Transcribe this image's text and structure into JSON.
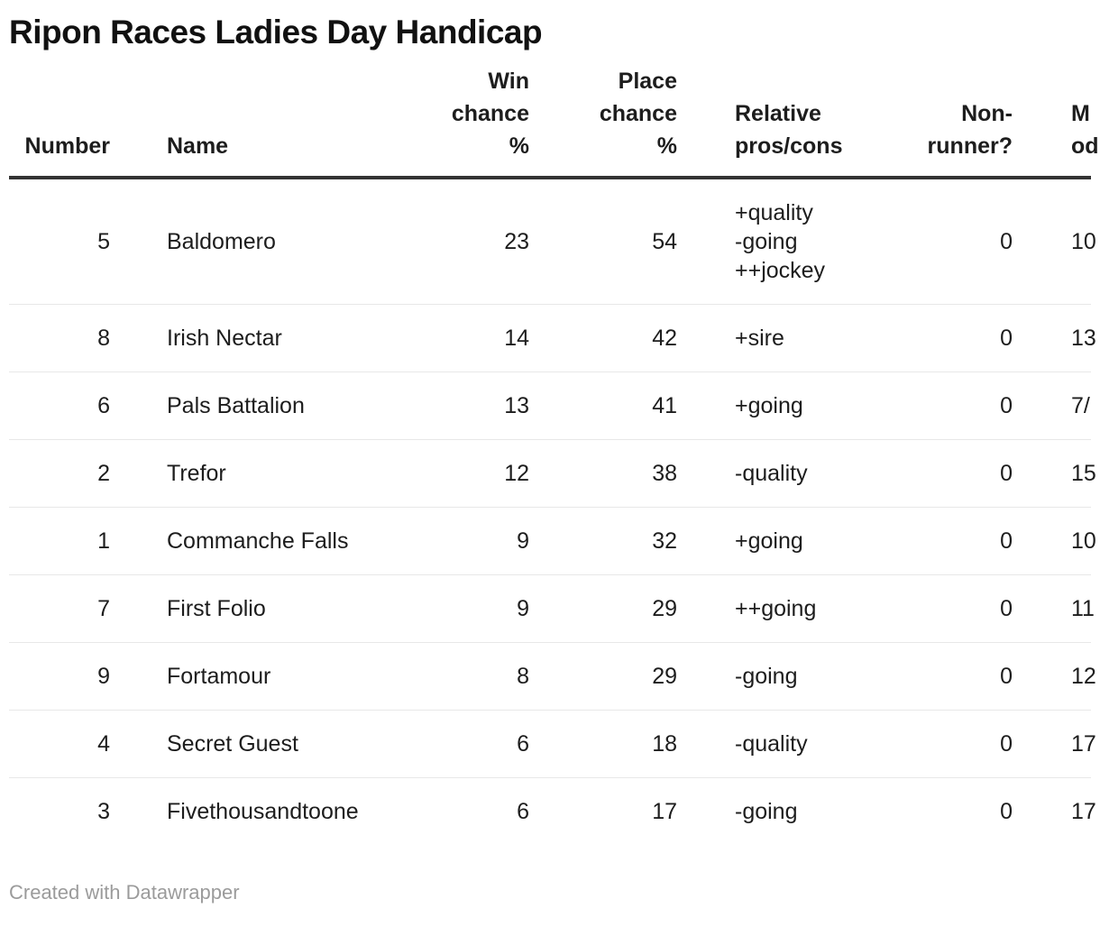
{
  "title": "Ripon Races Ladies Day Handicap",
  "footer": {
    "credit": "Created with Datawrapper"
  },
  "colors": {
    "text": "#1d1d1d",
    "title": "#111111",
    "header_rule": "#333333",
    "row_rule": "#e8e8e8",
    "footer_text": "#9b9b9b",
    "background": "#ffffff"
  },
  "chart_data": {
    "type": "table",
    "title": "Ripon Races Ladies Day Handicap",
    "columns": [
      {
        "key": "number",
        "label": "Number",
        "align": "right"
      },
      {
        "key": "name",
        "label": "Name",
        "align": "left"
      },
      {
        "key": "win",
        "label": "Win\nchance\n%",
        "align": "right"
      },
      {
        "key": "place",
        "label": "Place\nchance\n%",
        "align": "right"
      },
      {
        "key": "pros",
        "label": "Relative\npros/cons",
        "align": "left"
      },
      {
        "key": "nonrunner",
        "label": "Non-\nrunner?",
        "align": "right"
      },
      {
        "key": "odds",
        "label": "M\nod",
        "align": "left"
      }
    ],
    "rows": [
      {
        "number": "5",
        "name": "Baldomero",
        "win": "23",
        "place": "54",
        "pros": "+quality\n-going\n++jockey",
        "nonrunner": "0",
        "odds": "10"
      },
      {
        "number": "8",
        "name": "Irish Nectar",
        "win": "14",
        "place": "42",
        "pros": "+sire",
        "nonrunner": "0",
        "odds": "13"
      },
      {
        "number": "6",
        "name": "Pals Battalion",
        "win": "13",
        "place": "41",
        "pros": "+going",
        "nonrunner": "0",
        "odds": "7/"
      },
      {
        "number": "2",
        "name": "Trefor",
        "win": "12",
        "place": "38",
        "pros": "-quality",
        "nonrunner": "0",
        "odds": "15"
      },
      {
        "number": "1",
        "name": "Commanche Falls",
        "win": "9",
        "place": "32",
        "pros": "+going",
        "nonrunner": "0",
        "odds": "10"
      },
      {
        "number": "7",
        "name": "First Folio",
        "win": "9",
        "place": "29",
        "pros": "++going",
        "nonrunner": "0",
        "odds": "11"
      },
      {
        "number": "9",
        "name": "Fortamour",
        "win": "8",
        "place": "29",
        "pros": "-going",
        "nonrunner": "0",
        "odds": "12"
      },
      {
        "number": "4",
        "name": "Secret Guest",
        "win": "6",
        "place": "18",
        "pros": "-quality",
        "nonrunner": "0",
        "odds": "17"
      },
      {
        "number": "3",
        "name": "Fivethousandtoone",
        "win": "6",
        "place": "17",
        "pros": "-going",
        "nonrunner": "0",
        "odds": "17"
      }
    ]
  }
}
